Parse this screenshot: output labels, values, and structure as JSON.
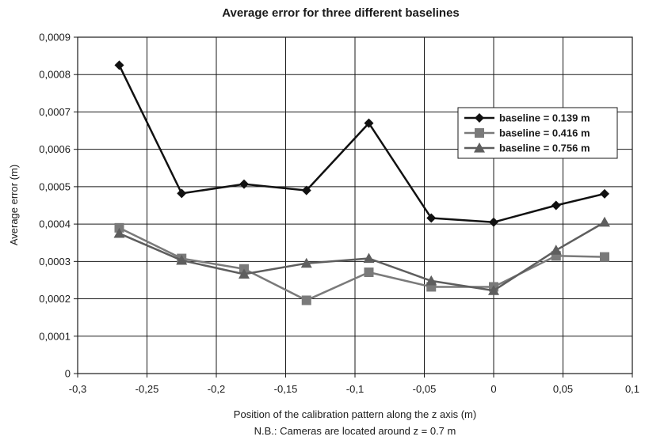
{
  "chart_data": {
    "type": "line",
    "title": "Average error for three different baselines",
    "xlabel": "Position of the calibration pattern along the z axis (m)",
    "xlabel_note": "N.B.: Cameras are located around z = 0.7 m",
    "ylabel": "Average error (m)",
    "xlim": [
      -0.3,
      0.1
    ],
    "ylim": [
      0,
      0.0009
    ],
    "x_ticks": [
      "-0,3",
      "-0,25",
      "-0,2",
      "-0,15",
      "-0,1",
      "-0,05",
      "0",
      "0,05",
      "0,1"
    ],
    "x_tick_values": [
      -0.3,
      -0.25,
      -0.2,
      -0.15,
      -0.1,
      -0.05,
      0,
      0.05,
      0.1
    ],
    "y_ticks": [
      "0",
      "0,0001",
      "0,0002",
      "0,0003",
      "0,0004",
      "0,0005",
      "0,0006",
      "0,0007",
      "0,0008",
      "0,0009"
    ],
    "y_tick_values": [
      0,
      0.0001,
      0.0002,
      0.0003,
      0.0004,
      0.0005,
      0.0006,
      0.0007,
      0.0008,
      0.0009
    ],
    "grid": true,
    "legend_position": "top-right",
    "x": [
      -0.27,
      -0.225,
      -0.18,
      -0.135,
      -0.09,
      -0.045,
      0,
      0.045,
      0.08
    ],
    "series": [
      {
        "name": "baseline = 0.139 m",
        "marker": "diamond",
        "color": "#111111",
        "values": [
          0.000825,
          0.000482,
          0.000507,
          0.00049,
          0.00067,
          0.000416,
          0.000405,
          0.00045,
          0.000481
        ]
      },
      {
        "name": "baseline = 0.416 m",
        "marker": "square",
        "color": "#7a7a7a",
        "values": [
          0.00039,
          0.000308,
          0.00028,
          0.000196,
          0.000271,
          0.000232,
          0.000232,
          0.000315,
          0.000312
        ]
      },
      {
        "name": "baseline = 0.756 m",
        "marker": "triangle",
        "color": "#5e5e5e",
        "values": [
          0.000375,
          0.000303,
          0.000266,
          0.000295,
          0.000308,
          0.000248,
          0.000222,
          0.00033,
          0.000405
        ]
      }
    ]
  }
}
